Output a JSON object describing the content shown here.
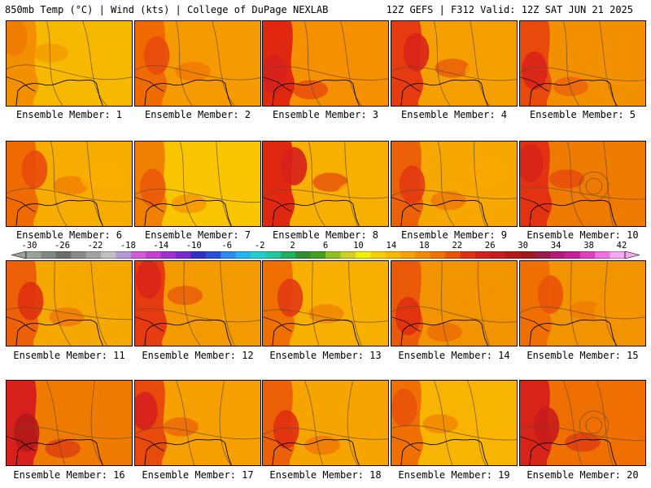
{
  "header": {
    "left_title": "850mb Temp (°C) | Wind (kts) | College of DuPage NEXLAB",
    "right_title": "12Z GEFS | F312 Valid: 12Z SAT JUN 21 2025"
  },
  "panels": [
    {
      "label": "Ensemble Member: 1",
      "base": "#f7b800",
      "hot": "#ef7a00",
      "west": "#f29000"
    },
    {
      "label": "Ensemble Member: 2",
      "base": "#f59a00",
      "hot": "#e84a0c",
      "west": "#ef6a00"
    },
    {
      "label": "Ensemble Member: 3",
      "base": "#f59000",
      "hot": "#d6201c",
      "west": "#e02810"
    },
    {
      "label": "Ensemble Member: 4",
      "base": "#f5a000",
      "hot": "#d82418",
      "west": "#e63a10"
    },
    {
      "label": "Ensemble Member: 5",
      "base": "#f29000",
      "hot": "#d82418",
      "west": "#e84a0c"
    },
    {
      "label": "Ensemble Member: 6",
      "base": "#f7ad00",
      "hot": "#e84a0c",
      "west": "#ef6a00"
    },
    {
      "label": "Ensemble Member: 7",
      "base": "#f9c400",
      "hot": "#ea5a08",
      "west": "#f08000"
    },
    {
      "label": "Ensemble Member: 8",
      "base": "#f7b000",
      "hot": "#d6201c",
      "west": "#e02810"
    },
    {
      "label": "Ensemble Member: 9",
      "base": "#f7a800",
      "hot": "#e23a12",
      "west": "#ec6008"
    },
    {
      "label": "Ensemble Member: 10",
      "base": "#ef7a00",
      "hot": "#d82418",
      "west": "#e23212"
    },
    {
      "label": "Ensemble Member: 11",
      "base": "#f5a800",
      "hot": "#e03010",
      "west": "#ec6008"
    },
    {
      "label": "Ensemble Member: 12",
      "base": "#f29a00",
      "hot": "#d8261a",
      "west": "#e63a10"
    },
    {
      "label": "Ensemble Member: 13",
      "base": "#f7b000",
      "hot": "#e23a12",
      "west": "#ef7000"
    },
    {
      "label": "Ensemble Member: 14",
      "base": "#f29400",
      "hot": "#e03010",
      "west": "#ea5a08"
    },
    {
      "label": "Ensemble Member: 15",
      "base": "#f29400",
      "hot": "#ea5208",
      "west": "#ef7000"
    },
    {
      "label": "Ensemble Member: 16",
      "base": "#ef7a00",
      "hot": "#b41818",
      "west": "#d6201c"
    },
    {
      "label": "Ensemble Member: 17",
      "base": "#f5a000",
      "hot": "#d6201c",
      "west": "#e84a0c"
    },
    {
      "label": "Ensemble Member: 18",
      "base": "#f5a400",
      "hot": "#e03010",
      "west": "#ec6008"
    },
    {
      "label": "Ensemble Member: 19",
      "base": "#f7b400",
      "hot": "#ea5208",
      "west": "#ef7000"
    },
    {
      "label": "Ensemble Member: 20",
      "base": "#ef7000",
      "hot": "#c81c1c",
      "west": "#d82418"
    }
  ],
  "colorbar": {
    "labels": [
      "-30",
      "-26",
      "-22",
      "-18",
      "-14",
      "-10",
      "-6",
      "-2",
      "2",
      "6",
      "10",
      "14",
      "18",
      "22",
      "26",
      "30",
      "34",
      "38",
      "42"
    ],
    "colors": [
      "#9aa39a",
      "#7f8a80",
      "#6d6d6d",
      "#8a8a8a",
      "#a3a3a3",
      "#c0c0c0",
      "#b39ad6",
      "#d25ad6",
      "#c83fd0",
      "#a030d0",
      "#7a2ad0",
      "#3030c8",
      "#2850e0",
      "#2a8cf0",
      "#20b4f0",
      "#20d0d0",
      "#20c8a0",
      "#20b060",
      "#309030",
      "#40a020",
      "#90c020",
      "#d0d020",
      "#f0f000",
      "#f8d000",
      "#f8b800",
      "#f8a000",
      "#f58a00",
      "#f07000",
      "#ea5208",
      "#e03010",
      "#d6201c",
      "#c81c1c",
      "#b41818",
      "#a01818",
      "#9a1a4a",
      "#b41a78",
      "#c81e9a",
      "#e040c0",
      "#f070e0",
      "#f8a8f0"
    ]
  }
}
